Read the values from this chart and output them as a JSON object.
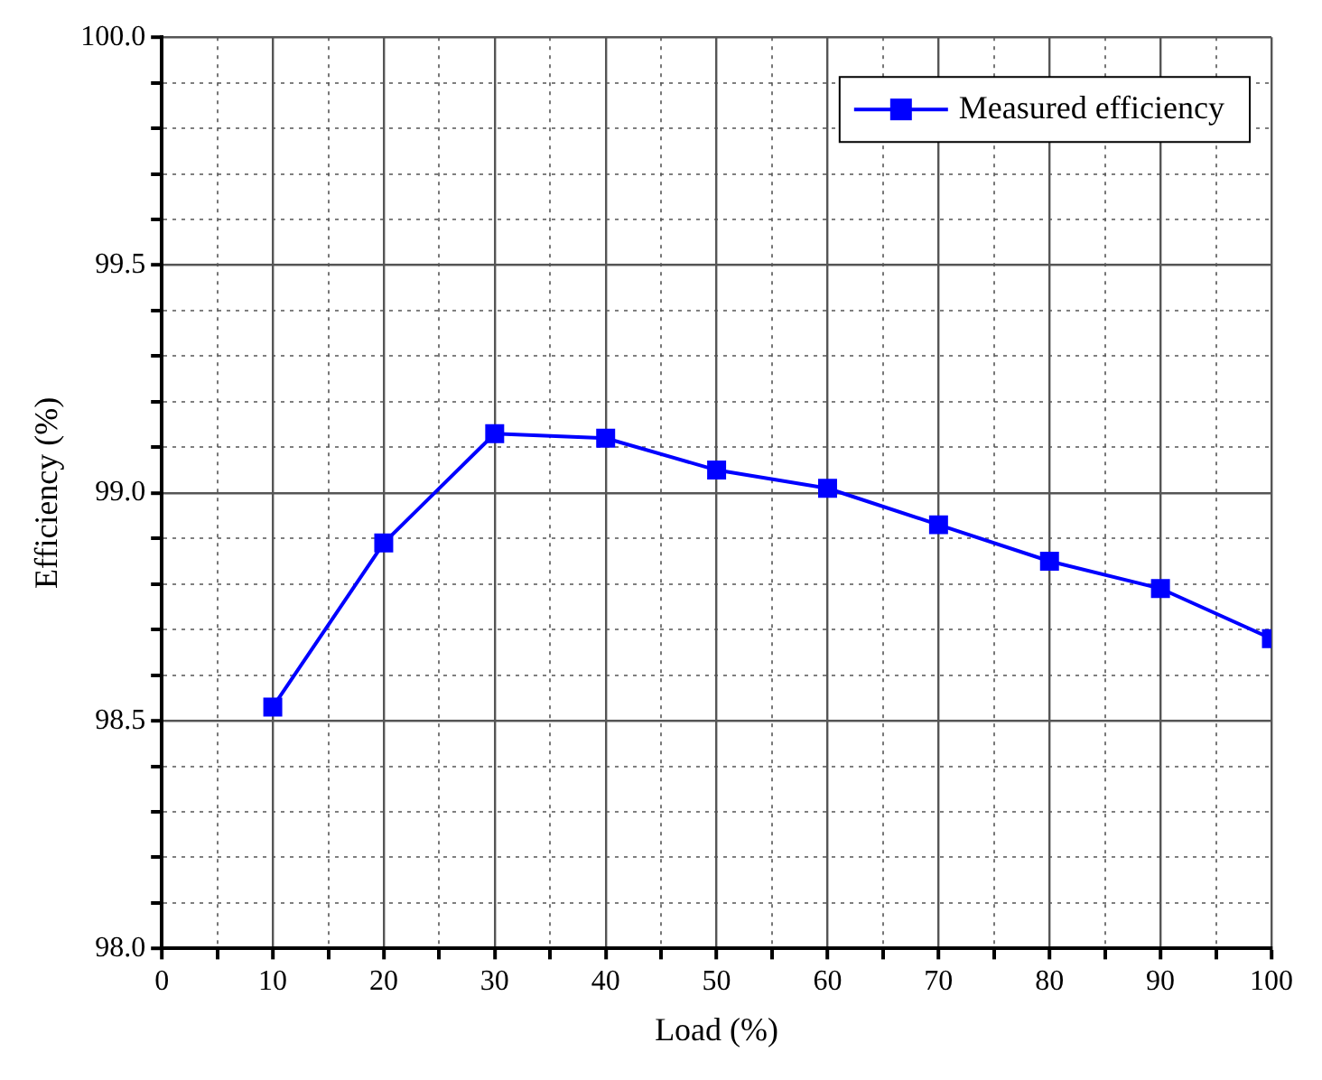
{
  "chart_data": {
    "type": "line",
    "xlabel": "Load (%)",
    "ylabel": "Efficiency (%)",
    "x": [
      10,
      20,
      30,
      40,
      50,
      60,
      70,
      80,
      90,
      100
    ],
    "series": [
      {
        "name": "Measured efficiency",
        "color": "#0000ff",
        "values": [
          98.53,
          98.89,
          99.13,
          99.12,
          99.05,
          99.01,
          98.93,
          98.85,
          98.79,
          98.68
        ]
      }
    ],
    "xlim": [
      0,
      100
    ],
    "xticks": [
      0,
      {
        "value": 5,
        "label": null
      },
      10,
      {
        "value": 15,
        "label": null
      },
      20,
      {
        "value": 25,
        "label": null
      },
      30,
      {
        "value": 35,
        "label": null
      },
      40,
      {
        "value": 45,
        "label": null
      },
      50,
      {
        "value": 55,
        "label": null
      },
      60,
      {
        "value": 65,
        "label": null
      },
      70,
      {
        "value": 75,
        "label": null
      },
      80,
      {
        "value": 85,
        "label": null
      },
      90,
      {
        "value": 95,
        "label": null
      },
      100
    ],
    "ylim": [
      98,
      100
    ],
    "yticks": [
      {
        "value": 98,
        "label": "98.0"
      },
      {
        "value": 98.1,
        "label": null
      },
      {
        "value": 98.2,
        "label": null
      },
      {
        "value": 98.3,
        "label": null
      },
      {
        "value": 98.4,
        "label": null
      },
      {
        "value": 98.5,
        "label": "98.5"
      },
      {
        "value": 98.6,
        "label": null
      },
      {
        "value": 98.7,
        "label": null
      },
      {
        "value": 98.8,
        "label": null
      },
      {
        "value": 98.9,
        "label": null
      },
      {
        "value": 99,
        "label": "99.0"
      },
      {
        "value": 99.1,
        "label": null
      },
      {
        "value": 99.2,
        "label": null
      },
      {
        "value": 99.3,
        "label": null
      },
      {
        "value": 99.4,
        "label": null
      },
      {
        "value": 99.5,
        "label": "99.5"
      },
      {
        "value": 99.6,
        "label": null
      },
      {
        "value": 99.7,
        "label": null
      },
      {
        "value": 99.8,
        "label": null
      },
      {
        "value": 99.9,
        "label": null
      },
      {
        "value": 100,
        "label": "100.0"
      }
    ],
    "grid": true,
    "legend": "top right",
    "marker": "square",
    "line_style": "solid"
  }
}
